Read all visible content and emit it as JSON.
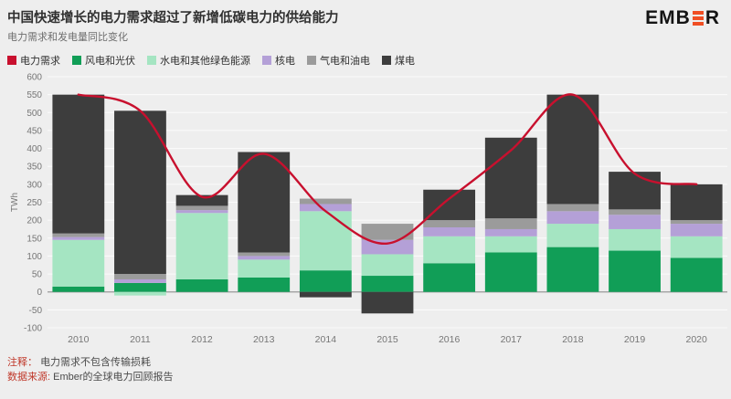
{
  "header": {
    "title": "中国快速增长的电力需求超过了新增低碳电力的供给能力",
    "subtitle": "电力需求和发电量同比变化"
  },
  "brand": {
    "left": "EMB",
    "right": "R",
    "accent_color": "#f04e23",
    "text_color": "#141414"
  },
  "legend": {
    "items": [
      {
        "key": "demand",
        "label": "电力需求",
        "color": "#c8102e"
      },
      {
        "key": "wind-solar",
        "label": "风电和光伏",
        "color": "#119e57"
      },
      {
        "key": "hydro-other-green",
        "label": "水电和其他绿色能源",
        "color": "#a5e5c2"
      },
      {
        "key": "nuclear",
        "label": "核电",
        "color": "#b4a0d7"
      },
      {
        "key": "gas-oil",
        "label": "气电和油电",
        "color": "#9b9b9b"
      },
      {
        "key": "coal",
        "label": "煤电",
        "color": "#3d3d3d"
      }
    ]
  },
  "chart_data": {
    "type": "bar",
    "subtype": "stacked-bars-with-line",
    "title": "中国快速增长的电力需求超过了新增低碳电力的供给能力",
    "subtitle": "电力需求和发电量同比变化",
    "categories": [
      "2010",
      "2011",
      "2012",
      "2013",
      "2014",
      "2015",
      "2016",
      "2017",
      "2018",
      "2019",
      "2020"
    ],
    "ylabel": "TWh",
    "xlabel": "",
    "ylim": [
      -100,
      600
    ],
    "y_tick_step": 50,
    "grid": "horizontal-white",
    "legend_position": "top",
    "series": [
      {
        "name": "风电和光伏",
        "color": "#119e57",
        "values": [
          15,
          25,
          35,
          40,
          60,
          45,
          80,
          110,
          125,
          115,
          95
        ]
      },
      {
        "name": "水电和其他绿色能源",
        "color": "#a5e5c2",
        "values": [
          130,
          -10,
          185,
          50,
          165,
          60,
          75,
          45,
          65,
          60,
          60
        ]
      },
      {
        "name": "核电",
        "color": "#b4a0d7",
        "values": [
          8,
          10,
          8,
          10,
          20,
          40,
          25,
          20,
          35,
          40,
          35
        ]
      },
      {
        "name": "气电和油电",
        "color": "#9b9b9b",
        "values": [
          10,
          15,
          12,
          10,
          15,
          45,
          20,
          30,
          20,
          15,
          10
        ]
      },
      {
        "name": "煤电",
        "color": "#3d3d3d",
        "values": [
          387,
          455,
          30,
          280,
          -15,
          -60,
          85,
          225,
          305,
          105,
          100
        ]
      }
    ],
    "line_series": {
      "name": "电力需求",
      "color": "#c8102e",
      "values": [
        550,
        505,
        265,
        385,
        225,
        135,
        260,
        395,
        550,
        330,
        300
      ]
    }
  },
  "footer": {
    "note_label": "注释：",
    "note_text": "电力需求不包含传输损耗",
    "source_label": "数据来源:",
    "source_text": "Ember的全球电力回顾报告"
  }
}
